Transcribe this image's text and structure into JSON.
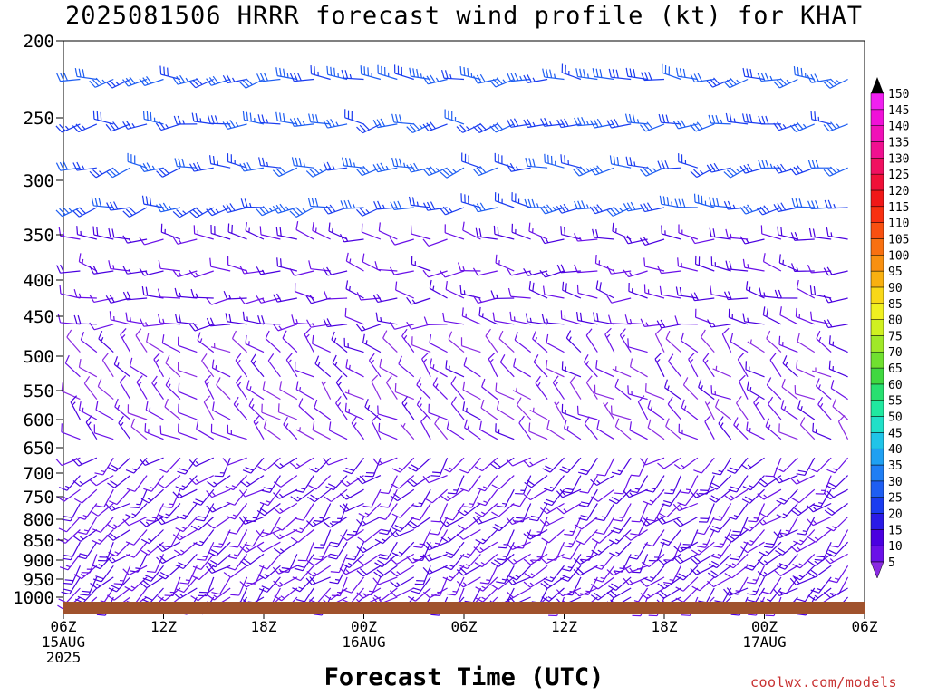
{
  "title": "2025081506 HRRR forecast wind profile (kt) for KHAT",
  "xlabel": "Forecast Time (UTC)",
  "credit": "coolwx.com/models",
  "chart_data": {
    "type": "wind_barb_time_height",
    "title": "2025081506 HRRR forecast wind profile (kt) for KHAT",
    "xlabel": "Forecast Time (UTC)",
    "ylabel": "",
    "y_axis_inverted": true,
    "yticks": [
      200,
      250,
      300,
      350,
      400,
      450,
      500,
      550,
      600,
      650,
      700,
      750,
      800,
      850,
      900,
      950,
      1000
    ],
    "xticks": [
      {
        "label": "06Z",
        "sub": "15AUG",
        "sub2": "2025"
      },
      {
        "label": "12Z",
        "sub": "",
        "sub2": ""
      },
      {
        "label": "18Z",
        "sub": "",
        "sub2": ""
      },
      {
        "label": "00Z",
        "sub": "16AUG",
        "sub2": ""
      },
      {
        "label": "06Z",
        "sub": "",
        "sub2": ""
      },
      {
        "label": "12Z",
        "sub": "",
        "sub2": ""
      },
      {
        "label": "18Z",
        "sub": "",
        "sub2": ""
      },
      {
        "label": "00Z",
        "sub": "17AUG",
        "sub2": ""
      },
      {
        "label": "06Z",
        "sub": "",
        "sub2": ""
      }
    ],
    "forecast_hours": [
      0,
      48
    ],
    "hour_step": 1,
    "levels": [
      225,
      255,
      290,
      325,
      355,
      390,
      425,
      460,
      495,
      530,
      565,
      600,
      635,
      670,
      705,
      735,
      765,
      795,
      825,
      855,
      885,
      915,
      945,
      975,
      1000
    ],
    "regimes": [
      {
        "min_level": 200,
        "max_level": 340,
        "dir_deg": 265,
        "speed_kt": 30
      },
      {
        "min_level": 340,
        "max_level": 460,
        "dir_deg": 275,
        "speed_kt": 15
      },
      {
        "min_level": 460,
        "max_level": 640,
        "dir_deg": 310,
        "speed_kt": 12
      },
      {
        "min_level": 640,
        "max_level": 1000,
        "dir_deg": 225,
        "speed_kt": 15
      }
    ],
    "colorbar": {
      "levels": [
        5,
        10,
        15,
        20,
        25,
        30,
        35,
        40,
        45,
        50,
        55,
        60,
        65,
        70,
        75,
        80,
        85,
        90,
        95,
        100,
        105,
        110,
        115,
        120,
        125,
        130,
        135,
        140,
        145,
        150
      ],
      "colors": [
        "#8a2be2",
        "#6a10e8",
        "#4a00e0",
        "#2a1ae6",
        "#1a3cf0",
        "#1e5ef2",
        "#1f7ef4",
        "#1fa0f2",
        "#20c4e8",
        "#20e0c8",
        "#20e8a0",
        "#28e070",
        "#40d840",
        "#70e030",
        "#a0e828",
        "#d0f020",
        "#f0f020",
        "#f8d818",
        "#f8b010",
        "#f89010",
        "#f87010",
        "#f85010",
        "#f83010",
        "#f01818",
        "#f01038",
        "#f01060",
        "#f01090",
        "#f010b8",
        "#f010d8",
        "#f020f0"
      ]
    },
    "surface_bar_color": "#a0522d",
    "grid": false
  }
}
